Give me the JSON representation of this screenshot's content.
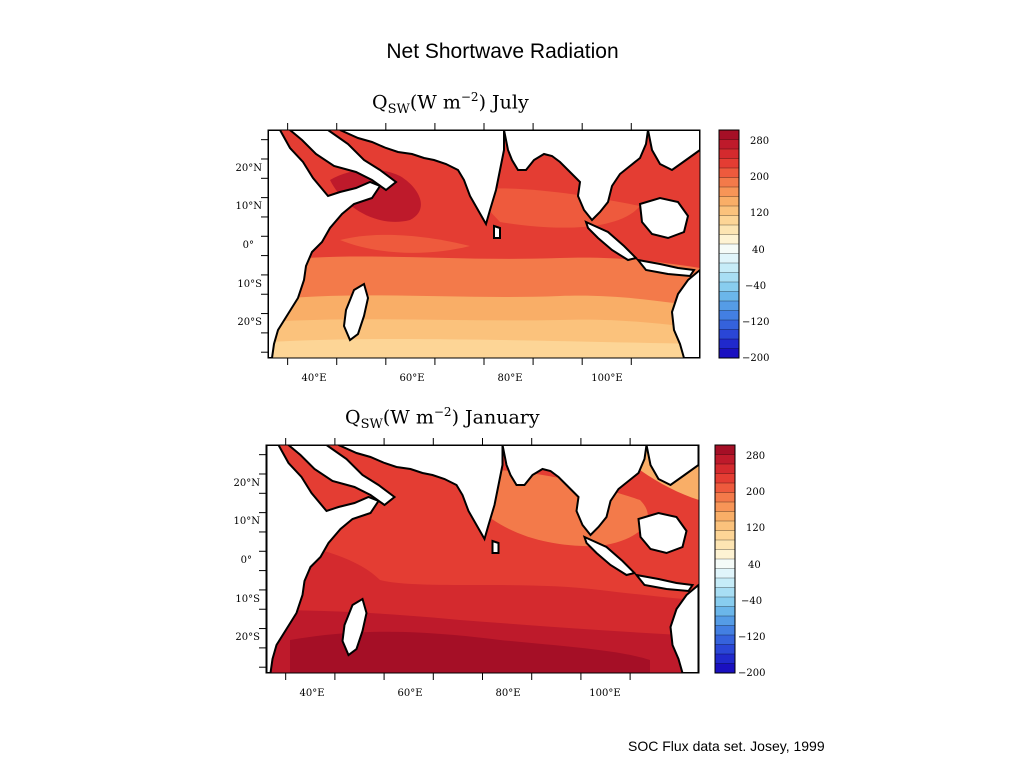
{
  "page": {
    "title": "Net Shortwave Radiation",
    "footer": "SOC Flux data set. Josey, 1999"
  },
  "panels": [
    {
      "q": "Q",
      "sub": "SW",
      "unit_open": "(W m",
      "exponent": "−2",
      "unit_close": ")",
      "month": "July",
      "lat_labels": [
        "20°N",
        "10°N",
        "0°",
        "10°S",
        "20°S"
      ],
      "lon_labels": [
        "40°E",
        "60°E",
        "80°E",
        "100°E"
      ]
    },
    {
      "q": "Q",
      "sub": "SW",
      "unit_open": "(W m",
      "exponent": "−2",
      "unit_close": ")",
      "month": "January",
      "lat_labels": [
        "20°N",
        "10°N",
        "0°",
        "10°S",
        "20°S"
      ],
      "lon_labels": [
        "40°E",
        "60°E",
        "80°E",
        "100°E"
      ]
    }
  ],
  "colorbar": {
    "labels": [
      "280",
      "200",
      "120",
      "40",
      "−40",
      "−120",
      "−200"
    ],
    "colors": [
      "#a50f26",
      "#be1a2b",
      "#d42a2e",
      "#e43d33",
      "#ee5a3d",
      "#f37a4a",
      "#f79557",
      "#f9ae67",
      "#fbc27c",
      "#fdd596",
      "#fde5b3",
      "#fef3d3",
      "#f5fbf8",
      "#e0f5fb",
      "#c6ecf8",
      "#a8def4",
      "#88cdef",
      "#6bb6ea",
      "#559ce6",
      "#437fe2",
      "#3562dc",
      "#2a46d6",
      "#2029cc",
      "#1a10c0"
    ]
  }
}
